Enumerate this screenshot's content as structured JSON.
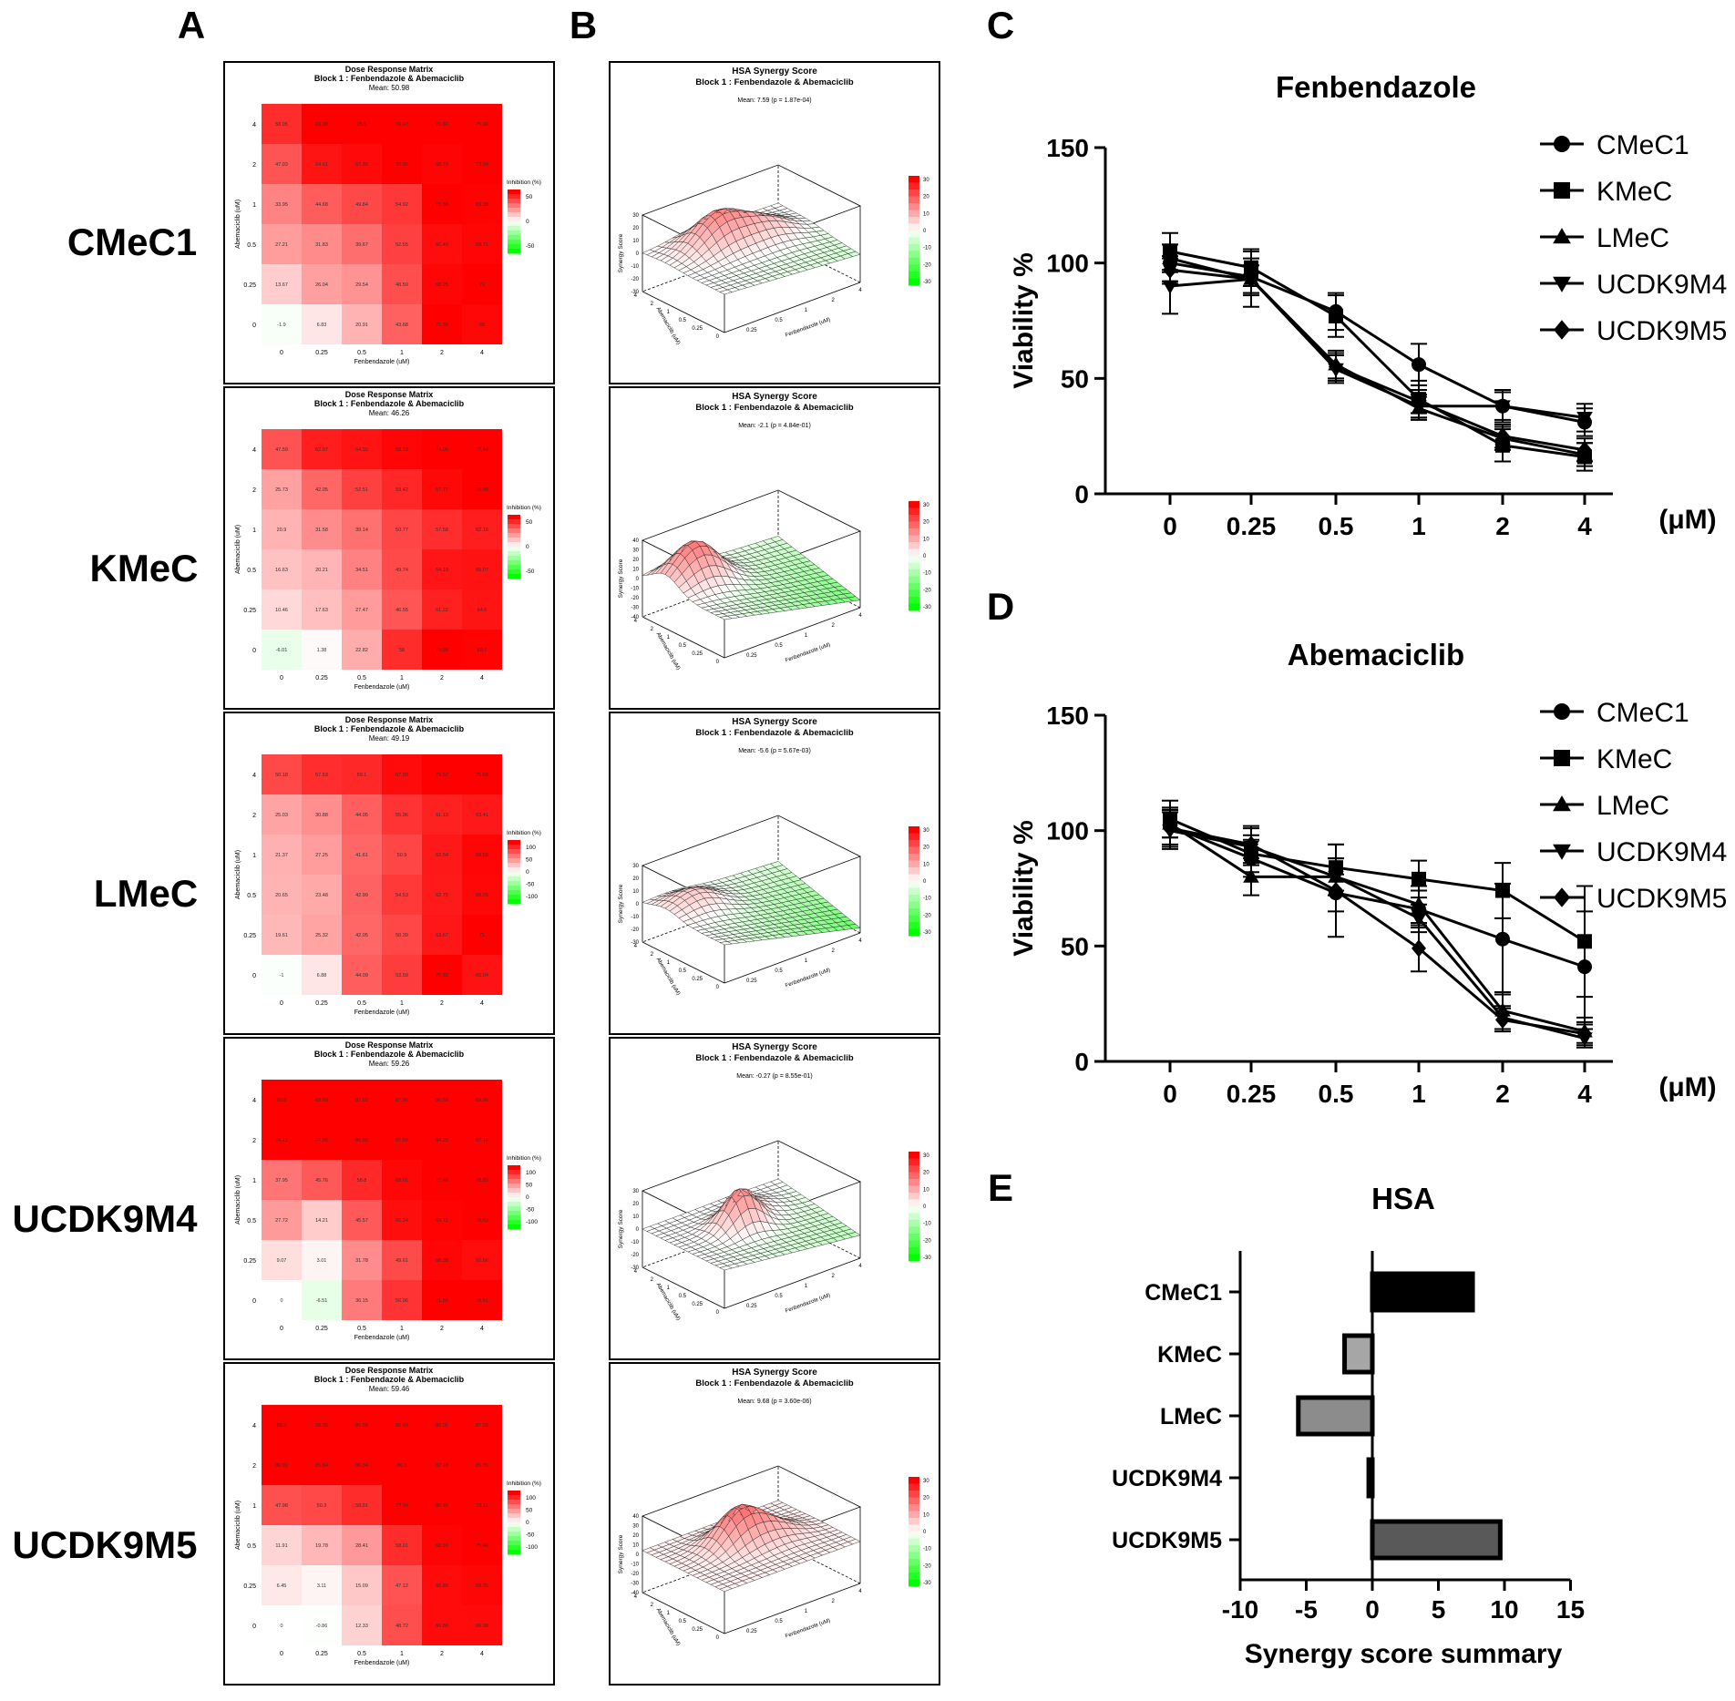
{
  "panel_letters": {
    "a": "A",
    "b": "B",
    "c": "C",
    "d": "D",
    "e": "E"
  },
  "cell_lines": [
    "CMeC1",
    "KMeC",
    "LMeC",
    "UCDK9M4",
    "UCDK9M5"
  ],
  "matrix_common": {
    "title": "Dose Response Matrix",
    "subtitle": "Block 1 : Fenbendazole & Abemaciclib",
    "xlabel": "Fenbendazole (uM)",
    "ylabel": "Abemaciclib (uM)",
    "doses": [
      "0",
      "0.25",
      "0.5",
      "1",
      "2",
      "4"
    ],
    "legend_title": "Inhibition (%)"
  },
  "synergy_common": {
    "title": "HSA Synergy Score",
    "subtitle": "Block 1 : Fenbendazole & Abemaciclib",
    "xlabel": "Fenbendazole (uM)",
    "ylabel": "Abemaciclib (uM)",
    "zlabel": "Synergy Score",
    "legend_ticks": [
      "30",
      "20",
      "10",
      "0",
      "-10",
      "-20",
      "-30"
    ]
  },
  "matrix_panels": [
    {
      "cell_line": "CMeC1",
      "mean": "Mean: 50.98",
      "legend_ticks": [
        "50",
        "0",
        "-50"
      ],
      "rows": [
        [
          58.05,
          69.98,
          75.5,
          76.47,
          76.82,
          75.06
        ],
        [
          47.03,
          64.61,
          67.35,
          70.06,
          68.79,
          73.04
        ],
        [
          33.95,
          44.68,
          49.84,
          54.92,
          70.36,
          69.38
        ],
        [
          27.21,
          31.83,
          39.67,
          52.55,
          66.48,
          68.71
        ],
        [
          13.67,
          26.04,
          29.54,
          48.59,
          68.25,
          71
        ],
        [
          -1.9,
          6.83,
          20.91,
          43.68,
          71.38,
          68
        ]
      ]
    },
    {
      "cell_line": "KMeC",
      "mean": "Mean: 46.26",
      "legend_ticks": [
        "50",
        "0",
        "-50"
      ],
      "rows": [
        [
          47.59,
          62.07,
          64.92,
          68.73,
          74.05,
          77.44
        ],
        [
          25.73,
          42.05,
          52.51,
          59.42,
          67.77,
          70.98
        ],
        [
          20.9,
          31.58,
          39.14,
          50.77,
          57.58,
          62.16
        ],
        [
          16.63,
          20.21,
          34.51,
          49.74,
          64.19,
          65.07
        ],
        [
          10.46,
          17.63,
          27.47,
          46.55,
          61.22,
          64.6
        ],
        [
          -6.01,
          1.38,
          22.82,
          58,
          70.99,
          69.1
        ]
      ]
    },
    {
      "cell_line": "LMeC",
      "mean": "Mean: 49.19",
      "legend_ticks": [
        "100",
        "50",
        "0",
        "-50",
        "-100"
      ],
      "rows": [
        [
          50.18,
          57.53,
          59.1,
          67.09,
          79.57,
          75.66
        ],
        [
          25.03,
          30.88,
          44.05,
          55.96,
          61.13,
          63.41
        ],
        [
          21.37,
          27.25,
          41.61,
          50.9,
          63.54,
          68.56
        ],
        [
          20.65,
          23.48,
          42.99,
          54.53,
          62.75,
          68.05
        ],
        [
          19.61,
          25.32,
          42.05,
          50.39,
          63.67,
          71
        ],
        [
          -1,
          6.88,
          44.09,
          53.59,
          75.82,
          65.04
        ]
      ]
    },
    {
      "cell_line": "UCDK9M4",
      "mean": "Mean: 59.26",
      "legend_ticks": [
        "100",
        "50",
        "0",
        "-50",
        "-100"
      ],
      "rows": [
        [
          90.5,
          88.68,
          87.92,
          87.96,
          86.59,
          89.06
        ],
        [
          78.12,
          77.66,
          86.65,
          87.58,
          84.25,
          87.16
        ],
        [
          37.95,
          45.76,
          58.8,
          68.01,
          77.46,
          78.85
        ],
        [
          27.72,
          14.21,
          45.57,
          66.24,
          69.11,
          75.69
        ],
        [
          9.07,
          3.01,
          31.78,
          49.61,
          68.38,
          66.56
        ],
        [
          0,
          -6.51,
          36.15,
          56.06,
          71.66,
          75.51
        ]
      ]
    },
    {
      "cell_line": "UCDK9M5",
      "mean": "Mean: 59.46",
      "legend_ticks": [
        "100",
        "50",
        "0",
        "-50",
        "-100"
      ],
      "rows": [
        [
          88.3,
          88.35,
          86.55,
          86.49,
          86.01,
          87.58
        ],
        [
          86.91,
          85.84,
          86.34,
          86.3,
          87.18,
          85.75
        ],
        [
          47.98,
          50.3,
          58.01,
          73.94,
          80.46,
          78.11
        ],
        [
          11.91,
          19.78,
          28.41,
          58.01,
          68.91,
          75.46
        ],
        [
          6.45,
          3.11,
          15.09,
          47.12,
          66.88,
          68.35
        ],
        [
          0,
          -0.86,
          12.33,
          48.72,
          66.86,
          66.98
        ]
      ]
    }
  ],
  "synergy_panels": [
    {
      "cell_line": "CMeC1",
      "mean": "Mean: 7.59 (p = 1.87e-04)",
      "z_ticks": [
        "30",
        "20",
        "10",
        "0",
        "-10",
        "-20",
        "-30"
      ]
    },
    {
      "cell_line": "KMeC",
      "mean": "Mean: -2.1 (p = 4.84e-01)",
      "z_ticks": [
        "40",
        "30",
        "20",
        "10",
        "0",
        "-10",
        "-20",
        "-30",
        "-40"
      ]
    },
    {
      "cell_line": "LMeC",
      "mean": "Mean: -5.6 (p = 5.67e-03)",
      "z_ticks": [
        "30",
        "20",
        "10",
        "0",
        "-10",
        "-20",
        "-30"
      ]
    },
    {
      "cell_line": "UCDK9M4",
      "mean": "Mean: -0.27 (p = 8.55e-01)",
      "z_ticks": [
        "30",
        "20",
        "10",
        "0",
        "-10",
        "-20",
        "-30"
      ]
    },
    {
      "cell_line": "UCDK9M5",
      "mean": "Mean: 9.68 (p = 3.60e-06)",
      "z_ticks": [
        "40",
        "30",
        "20",
        "10",
        "0",
        "-10",
        "-20",
        "-30",
        "-40"
      ]
    }
  ],
  "chart_data": [
    {
      "type": "line",
      "panel": "C",
      "title": "Fenbendazole",
      "categories": [
        "0",
        "0.25",
        "0.5",
        "1",
        "2",
        "4"
      ],
      "xlabel": "(μM)",
      "ylabel": "Viability %",
      "ylim": [
        0,
        150
      ],
      "yticks": [
        "0",
        "50",
        "100",
        "150"
      ],
      "series": [
        {
          "name": "CMeC1",
          "marker": "circle",
          "values": [
            100,
            94,
            79,
            56,
            38,
            31
          ],
          "err": [
            8,
            8,
            8,
            9,
            7,
            6
          ]
        },
        {
          "name": "KMeC",
          "marker": "square",
          "values": [
            105,
            98,
            77,
            41,
            21,
            16
          ],
          "err": [
            8,
            8,
            9,
            8,
            7,
            6
          ]
        },
        {
          "name": "LMeC",
          "marker": "triangle-up",
          "values": [
            102,
            93,
            56,
            37,
            24,
            17
          ],
          "err": [
            6,
            6,
            6,
            5,
            5,
            5
          ]
        },
        {
          "name": "UCDK9M4",
          "marker": "triangle-down",
          "values": [
            90,
            93,
            54,
            38,
            38,
            33
          ],
          "err": [
            12,
            12,
            6,
            5,
            6,
            6
          ]
        },
        {
          "name": "UCDK9M5",
          "marker": "diamond",
          "values": [
            97,
            93,
            55,
            40,
            25,
            19
          ],
          "err": [
            6,
            6,
            6,
            5,
            5,
            5
          ]
        }
      ]
    },
    {
      "type": "line",
      "panel": "D",
      "title": "Abemaciclib",
      "categories": [
        "0",
        "0.25",
        "0.5",
        "1",
        "2",
        "4"
      ],
      "xlabel": "(μM)",
      "ylabel": "Viability %",
      "ylim": [
        0,
        150
      ],
      "yticks": [
        "0",
        "50",
        "100",
        "150"
      ],
      "series": [
        {
          "name": "CMeC1",
          "marker": "circle",
          "values": [
            102,
            88,
            73,
            66,
            53,
            41
          ],
          "err": [
            8,
            8,
            8,
            8,
            24,
            24
          ]
        },
        {
          "name": "KMeC",
          "marker": "square",
          "values": [
            105,
            90,
            84,
            79,
            74,
            52
          ],
          "err": [
            8,
            8,
            10,
            8,
            12,
            24
          ]
        },
        {
          "name": "LMeC",
          "marker": "triangle-up",
          "values": [
            103,
            80,
            80,
            68,
            22,
            13
          ],
          "err": [
            6,
            8,
            8,
            8,
            8,
            6
          ]
        },
        {
          "name": "UCDK9M4",
          "marker": "triangle-down",
          "values": [
            100,
            93,
            80,
            62,
            19,
            10
          ],
          "err": [
            8,
            8,
            8,
            6,
            5,
            4
          ]
        },
        {
          "name": "UCDK9M5",
          "marker": "diamond",
          "values": [
            101,
            94,
            74,
            49,
            18,
            12
          ],
          "err": [
            8,
            8,
            20,
            10,
            5,
            4
          ]
        }
      ]
    },
    {
      "type": "bar",
      "panel": "E",
      "orientation": "horizontal",
      "title": "HSA",
      "categories": [
        "CMeC1",
        "KMeC",
        "LMeC",
        "UCDK9M4",
        "UCDK9M5"
      ],
      "values": [
        7.59,
        -2.1,
        -5.6,
        -0.27,
        9.68
      ],
      "colors": [
        "#000000",
        "#a6a6a6",
        "#8c8c8c",
        "#333333",
        "#595959"
      ],
      "xlabel": "Synergy score summary",
      "xlim": [
        -10,
        15
      ],
      "xticks": [
        "-10",
        "-5",
        "0",
        "5",
        "10",
        "15"
      ]
    }
  ]
}
